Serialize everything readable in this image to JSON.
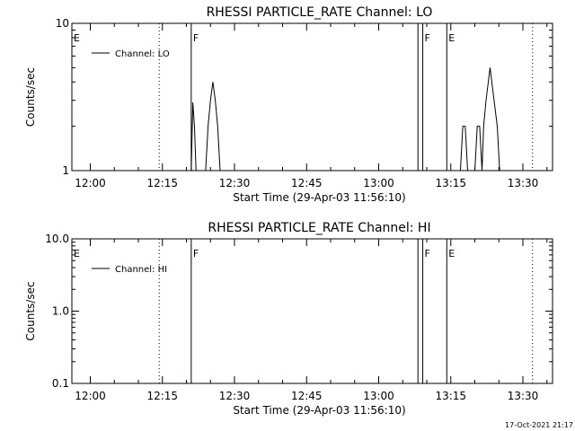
{
  "footer_timestamp": "17-Oct-2021 21:17",
  "chart_data": [
    {
      "type": "line",
      "title": "RHESSI PARTICLE_RATE Channel: LO",
      "xlabel": "Start Time (29-Apr-03 11:56:10)",
      "ylabel": "Counts/sec",
      "yscale": "log",
      "xlim_minutes_since_start": [
        0,
        100
      ],
      "ylim": [
        1,
        10
      ],
      "x_ticks": [
        "12:00",
        "12:15",
        "12:30",
        "12:45",
        "13:00",
        "13:15",
        "13:30"
      ],
      "y_ticks": [
        "1",
        "10"
      ],
      "legend": {
        "position": "top-left",
        "entries": [
          {
            "name": "Channel: LO"
          }
        ]
      },
      "markers": [
        {
          "label": "E",
          "x": "11:56:10",
          "style": "solid"
        },
        {
          "label": "",
          "x": "12:14:20",
          "style": "dotted"
        },
        {
          "label": "F",
          "x": "12:21:00",
          "style": "solid"
        },
        {
          "label": "",
          "x": "13:08:10",
          "style": "solid"
        },
        {
          "label": "F",
          "x": "13:09:10",
          "style": "solid"
        },
        {
          "label": "E",
          "x": "13:14:10",
          "style": "solid"
        },
        {
          "label": "",
          "x": "13:32:00",
          "style": "dotted"
        }
      ],
      "series": [
        {
          "name": "Channel: LO",
          "points": [
            [
              "12:21:00",
              1
            ],
            [
              "12:21:20",
              2.9
            ],
            [
              "12:21:40",
              2.0
            ],
            [
              "12:22:00",
              1
            ],
            [
              "12:24:00",
              1
            ],
            [
              "12:24:30",
              2.0
            ],
            [
              "12:25:00",
              3.0
            ],
            [
              "12:25:30",
              4.0
            ],
            [
              "12:26:00",
              3.0
            ],
            [
              "12:26:30",
              2.0
            ],
            [
              "12:27:00",
              1
            ],
            [
              "13:17:00",
              1
            ],
            [
              "13:17:30",
              2.0
            ],
            [
              "13:18:00",
              2.0
            ],
            [
              "13:18:30",
              1
            ],
            [
              "13:20:00",
              1
            ],
            [
              "13:20:30",
              2.0
            ],
            [
              "13:21:00",
              2.0
            ],
            [
              "13:21:30",
              1
            ],
            [
              "13:21:50",
              2.0
            ],
            [
              "13:22:20",
              3.0
            ],
            [
              "13:23:10",
              5.0
            ],
            [
              "13:24:00",
              3.0
            ],
            [
              "13:24:40",
              2.0
            ],
            [
              "13:25:10",
              1
            ]
          ]
        }
      ]
    },
    {
      "type": "line",
      "title": "RHESSI PARTICLE_RATE Channel: HI",
      "xlabel": "Start Time (29-Apr-03 11:56:10)",
      "ylabel": "Counts/sec",
      "yscale": "log",
      "xlim_minutes_since_start": [
        0,
        100
      ],
      "ylim": [
        0.1,
        10
      ],
      "x_ticks": [
        "12:00",
        "12:15",
        "12:30",
        "12:45",
        "13:00",
        "13:15",
        "13:30"
      ],
      "y_ticks": [
        "0.1",
        "1.0",
        "10.0"
      ],
      "legend": {
        "position": "top-left",
        "entries": [
          {
            "name": "Channel: HI"
          }
        ]
      },
      "markers": [
        {
          "label": "E",
          "x": "11:56:10",
          "style": "solid"
        },
        {
          "label": "",
          "x": "12:14:20",
          "style": "dotted"
        },
        {
          "label": "F",
          "x": "12:21:00",
          "style": "solid"
        },
        {
          "label": "",
          "x": "13:08:10",
          "style": "solid"
        },
        {
          "label": "F",
          "x": "13:09:10",
          "style": "solid"
        },
        {
          "label": "E",
          "x": "13:14:10",
          "style": "solid"
        },
        {
          "label": "",
          "x": "13:32:00",
          "style": "dotted"
        }
      ],
      "series": [
        {
          "name": "Channel: HI",
          "points": []
        }
      ]
    }
  ]
}
